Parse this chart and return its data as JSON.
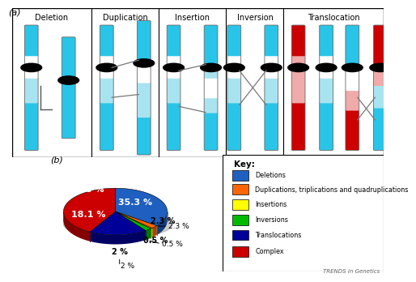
{
  "pie_values": [
    35.3,
    2.3,
    0.5,
    2.0,
    18.1,
    41.8
  ],
  "pie_labels": [
    "35.3 %",
    "2.3 %",
    "0.5 %",
    "2 %",
    "18.1 %",
    "41.8 %"
  ],
  "pie_colors": [
    "#1E5FBF",
    "#FF6600",
    "#FFFF00",
    "#00BB00",
    "#000099",
    "#CC0000"
  ],
  "pie_label_colors": [
    "white",
    "black",
    "black",
    "black",
    "white",
    "white"
  ],
  "legend_labels": [
    "Deletions",
    "Duplications, triplications and quadruplications",
    "Insertions",
    "Inversions",
    "Translocations",
    "Complex"
  ],
  "legend_colors": [
    "#1E5FBF",
    "#FF6600",
    "#FFFF00",
    "#00BB00",
    "#000099",
    "#CC0000"
  ],
  "panel_a_label": "(a)",
  "panel_b_label": "(b)",
  "watermark": "TRENDS in Genetics",
  "chr_light_blue": "#29C5E8",
  "chr_pale_blue": "#A8E4F0",
  "chr_white": "#FFFFFF",
  "chr_dark_red": "#CC0000",
  "chr_pink": "#F0AAAA",
  "section_titles": [
    "Deletion",
    "Duplication",
    "Insertion",
    "Inversion",
    "Translocation"
  ],
  "background_color": "#FFFFFF"
}
